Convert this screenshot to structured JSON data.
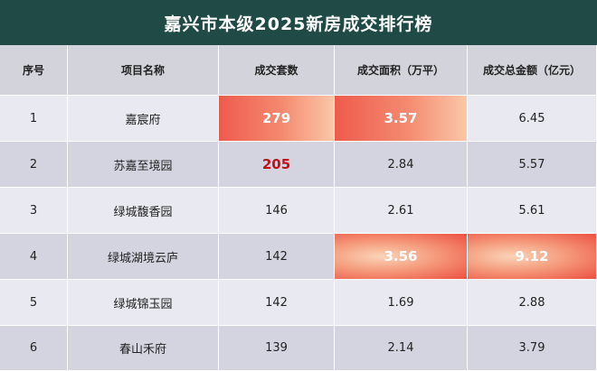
{
  "header": {
    "title": "嘉兴市本级2025新房成交排行榜"
  },
  "table": {
    "columns": [
      "序号",
      "项目名称",
      "成交套数",
      "成交面积（万平）",
      "成交总金额（亿元）"
    ],
    "rows": [
      [
        1,
        "嘉宸府",
        279,
        3.57,
        6.45
      ],
      [
        2,
        "苏嘉至境园",
        205,
        2.84,
        5.57
      ],
      [
        3,
        "绿城馥香园",
        146,
        2.61,
        5.61
      ],
      [
        4,
        "绿城湖境云庐",
        142,
        3.56,
        9.12
      ],
      [
        5,
        "绿城锦玉园",
        142,
        1.69,
        2.88
      ],
      [
        6,
        "春山禾府",
        139,
        2.14,
        3.79
      ]
    ]
  }
}
